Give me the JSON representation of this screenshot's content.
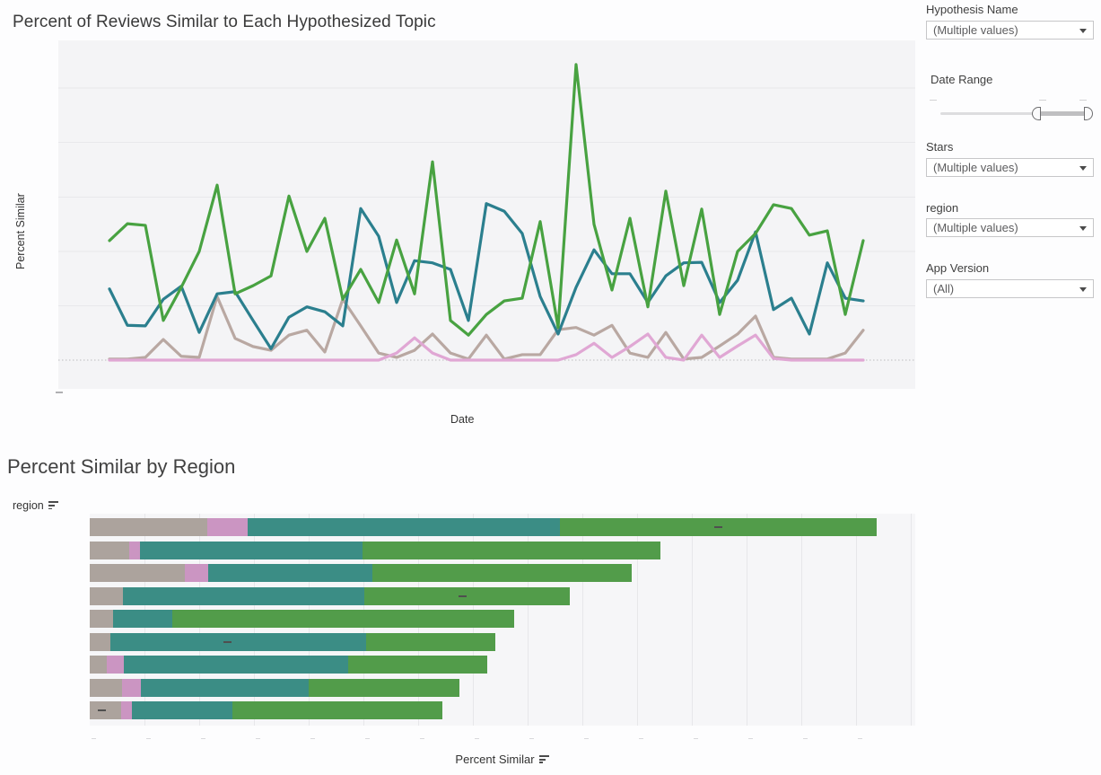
{
  "line_chart_section": {
    "title": "Percent of Reviews Similar to Each Hypothesized Topic",
    "ylabel": "Percent Similar",
    "xlabel": "Date"
  },
  "bar_chart_section": {
    "title": "Percent Similar by Region",
    "row_header": "region",
    "xlabel": "Percent Similar"
  },
  "filters": {
    "hypothesis_name": {
      "label": "Hypothesis Name",
      "value": "(Multiple values)"
    },
    "date_range": {
      "label": "Date Range"
    },
    "stars": {
      "label": "Stars",
      "value": "(Multiple values)"
    },
    "region": {
      "label": "region",
      "value": "(Multiple values)"
    },
    "app_version": {
      "label": "App Version",
      "value": "(All)"
    }
  },
  "colors": {
    "line_green": "#48a241",
    "line_teal": "#2b7f8e",
    "line_gray": "#b9a8a2",
    "line_pink": "#e0a7d4",
    "bar_green": "#529c4a",
    "bar_teal": "#3b8d85",
    "bar_gray": "#aca39d",
    "bar_pink": "#cb95c2"
  },
  "chart_data": [
    {
      "type": "line",
      "title": "Percent of Reviews Similar to Each Hypothesized Topic",
      "xlabel": "Date",
      "ylabel": "Percent Similar",
      "x_note": "date tick labels not visible in screenshot; x is sequential date index",
      "x": [
        0,
        1,
        2,
        3,
        4,
        5,
        6,
        7,
        8,
        9,
        10,
        11,
        12,
        13,
        14,
        15,
        16,
        17,
        18,
        19,
        20,
        21,
        22,
        23,
        24,
        25,
        26,
        27,
        28,
        29,
        30,
        31,
        32,
        33,
        34,
        35,
        36,
        37,
        38,
        39,
        40,
        41,
        42
      ],
      "ylim": [
        0,
        60
      ],
      "grid": "horizontal",
      "zero_line": "dotted",
      "legend": "none",
      "series": [
        {
          "name": "gray",
          "values": [
            0.2,
            0.2,
            0.5,
            3.8,
            0.7,
            0.5,
            11.7,
            4,
            2.5,
            1.8,
            4.6,
            5.5,
            1.5,
            11.2,
            6.3,
            1.3,
            0.5,
            1.8,
            4.8,
            1.3,
            0.2,
            4.6,
            0.2,
            1,
            1,
            5.6,
            6,
            4.6,
            6.4,
            1.3,
            0.5,
            5.1,
            0.2,
            0.5,
            2.6,
            4.8,
            8.1,
            0.5,
            0.2,
            0.2,
            0.2,
            1.3,
            5.5
          ]
        },
        {
          "name": "pink",
          "values": [
            0,
            0,
            0,
            0,
            0,
            0,
            0,
            0,
            0,
            0,
            0,
            0,
            0,
            0,
            0,
            0,
            1.3,
            4.1,
            1.3,
            0,
            0,
            0,
            0,
            0,
            0,
            0,
            1,
            3.1,
            0.5,
            2.5,
            4.8,
            0.5,
            0,
            4.6,
            0.5,
            2.6,
            4.6,
            0.3,
            0,
            0,
            0,
            0,
            0
          ]
        },
        {
          "name": "teal",
          "values": [
            13.1,
            6.4,
            6.3,
            11.2,
            13.6,
            5.1,
            12.2,
            12.6,
            7.3,
            2.1,
            7.9,
            9.8,
            8.9,
            6.3,
            27.9,
            22.8,
            10.6,
            18.3,
            17.9,
            16.7,
            7.3,
            28.8,
            27.4,
            23.3,
            11.7,
            4.8,
            13.4,
            20.3,
            15.9,
            15.9,
            10.6,
            15.5,
            17.9,
            18,
            10.6,
            14.7,
            23.6,
            9.3,
            11.4,
            4.8,
            17.9,
            11.4,
            10.9
          ]
        },
        {
          "name": "green",
          "values": [
            22,
            25.1,
            24.8,
            7.3,
            13.4,
            20,
            32.2,
            12.2,
            13.7,
            15.5,
            30.2,
            20,
            26.1,
            11.2,
            16.7,
            10.6,
            22.1,
            12.2,
            36.5,
            7.3,
            4.6,
            8.4,
            10.9,
            11.4,
            25.5,
            6,
            54.4,
            25,
            12.9,
            26.1,
            9.8,
            31.1,
            13.7,
            27.8,
            8.4,
            20,
            23.3,
            28.6,
            27.9,
            23,
            23.8,
            8.4,
            22
          ]
        }
      ]
    },
    {
      "type": "bar",
      "orientation": "horizontal",
      "stacked": true,
      "title": "Percent Similar by Region",
      "xlabel": "Percent Similar",
      "row_label_column": "region",
      "categories_note": "region row labels are not visible in the screenshot",
      "categories": [
        "",
        "",
        "",
        "",
        "",
        "",
        "",
        "",
        ""
      ],
      "axis_note": "axis tick labels not visible; values in gridline units (10 per gridline)",
      "series": [
        {
          "name": "gray",
          "values": [
            21.5,
            7.2,
            17.4,
            6.1,
            4.3,
            3.8,
            3.1,
            5.9,
            5.7
          ]
        },
        {
          "name": "pink",
          "values": [
            7.4,
            2.0,
            4.3,
            0,
            0,
            0,
            3.1,
            3.4,
            2.0
          ]
        },
        {
          "name": "teal",
          "values": [
            57.0,
            40.7,
            30.0,
            44.1,
            10.8,
            46.7,
            41.0,
            30.7,
            18.4
          ]
        },
        {
          "name": "green",
          "values": [
            57.9,
            54.3,
            47.4,
            37.5,
            62.5,
            23.6,
            25.4,
            27.5,
            38.4
          ]
        }
      ],
      "mark_dashes": [
        {
          "row": 0,
          "x_unit": 114.8
        },
        {
          "row": 3,
          "x_unit": 68.0
        },
        {
          "row": 5,
          "x_unit": 25.1
        },
        {
          "row": 8,
          "x_unit": 2.1
        }
      ]
    }
  ]
}
